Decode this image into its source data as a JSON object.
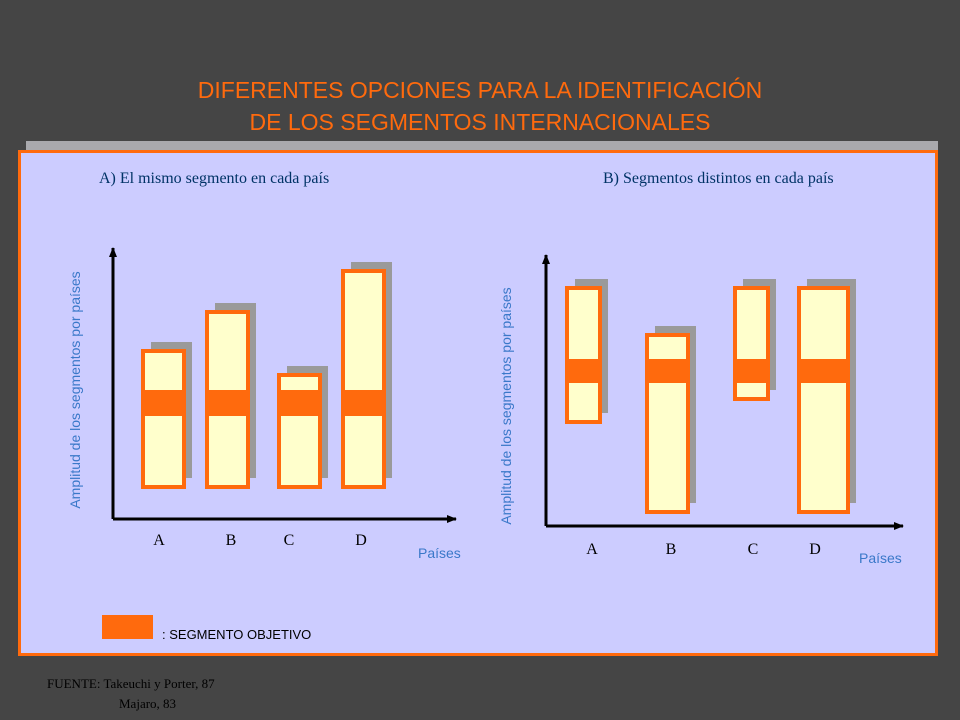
{
  "title": {
    "line1": "DIFERENTES OPCIONES PARA LA IDENTIFICACIÓN",
    "line2": "DE LOS SEGMENTOS INTERNACIONALES"
  },
  "panel_a": {
    "subtitle": "A) El mismo segmento en cada país",
    "ylabel": "Amplitud de los segmentos por países",
    "xlabel": "Países",
    "categories": [
      "A",
      "B",
      "C",
      "D"
    ]
  },
  "panel_b": {
    "subtitle": "B) Segmentos distintos en cada país",
    "ylabel": "Amplitud de los segmentos por países",
    "xlabel": "Países",
    "categories": [
      "A",
      "B",
      "C",
      "D"
    ]
  },
  "legend": {
    "label": ": SEGMENTO OBJETIVO"
  },
  "source": {
    "line1": "FUENTE: Takeuchi  y Porter, 87",
    "line2": "Majaro, 83"
  },
  "colors": {
    "background": "#454545",
    "panel": "#ccccff",
    "accent": "#ff6a0d",
    "bar_fill": "#ffffcc",
    "shadow": "#9a9a9a",
    "label_blue": "#3a78c9",
    "subtitle": "#003366"
  }
}
